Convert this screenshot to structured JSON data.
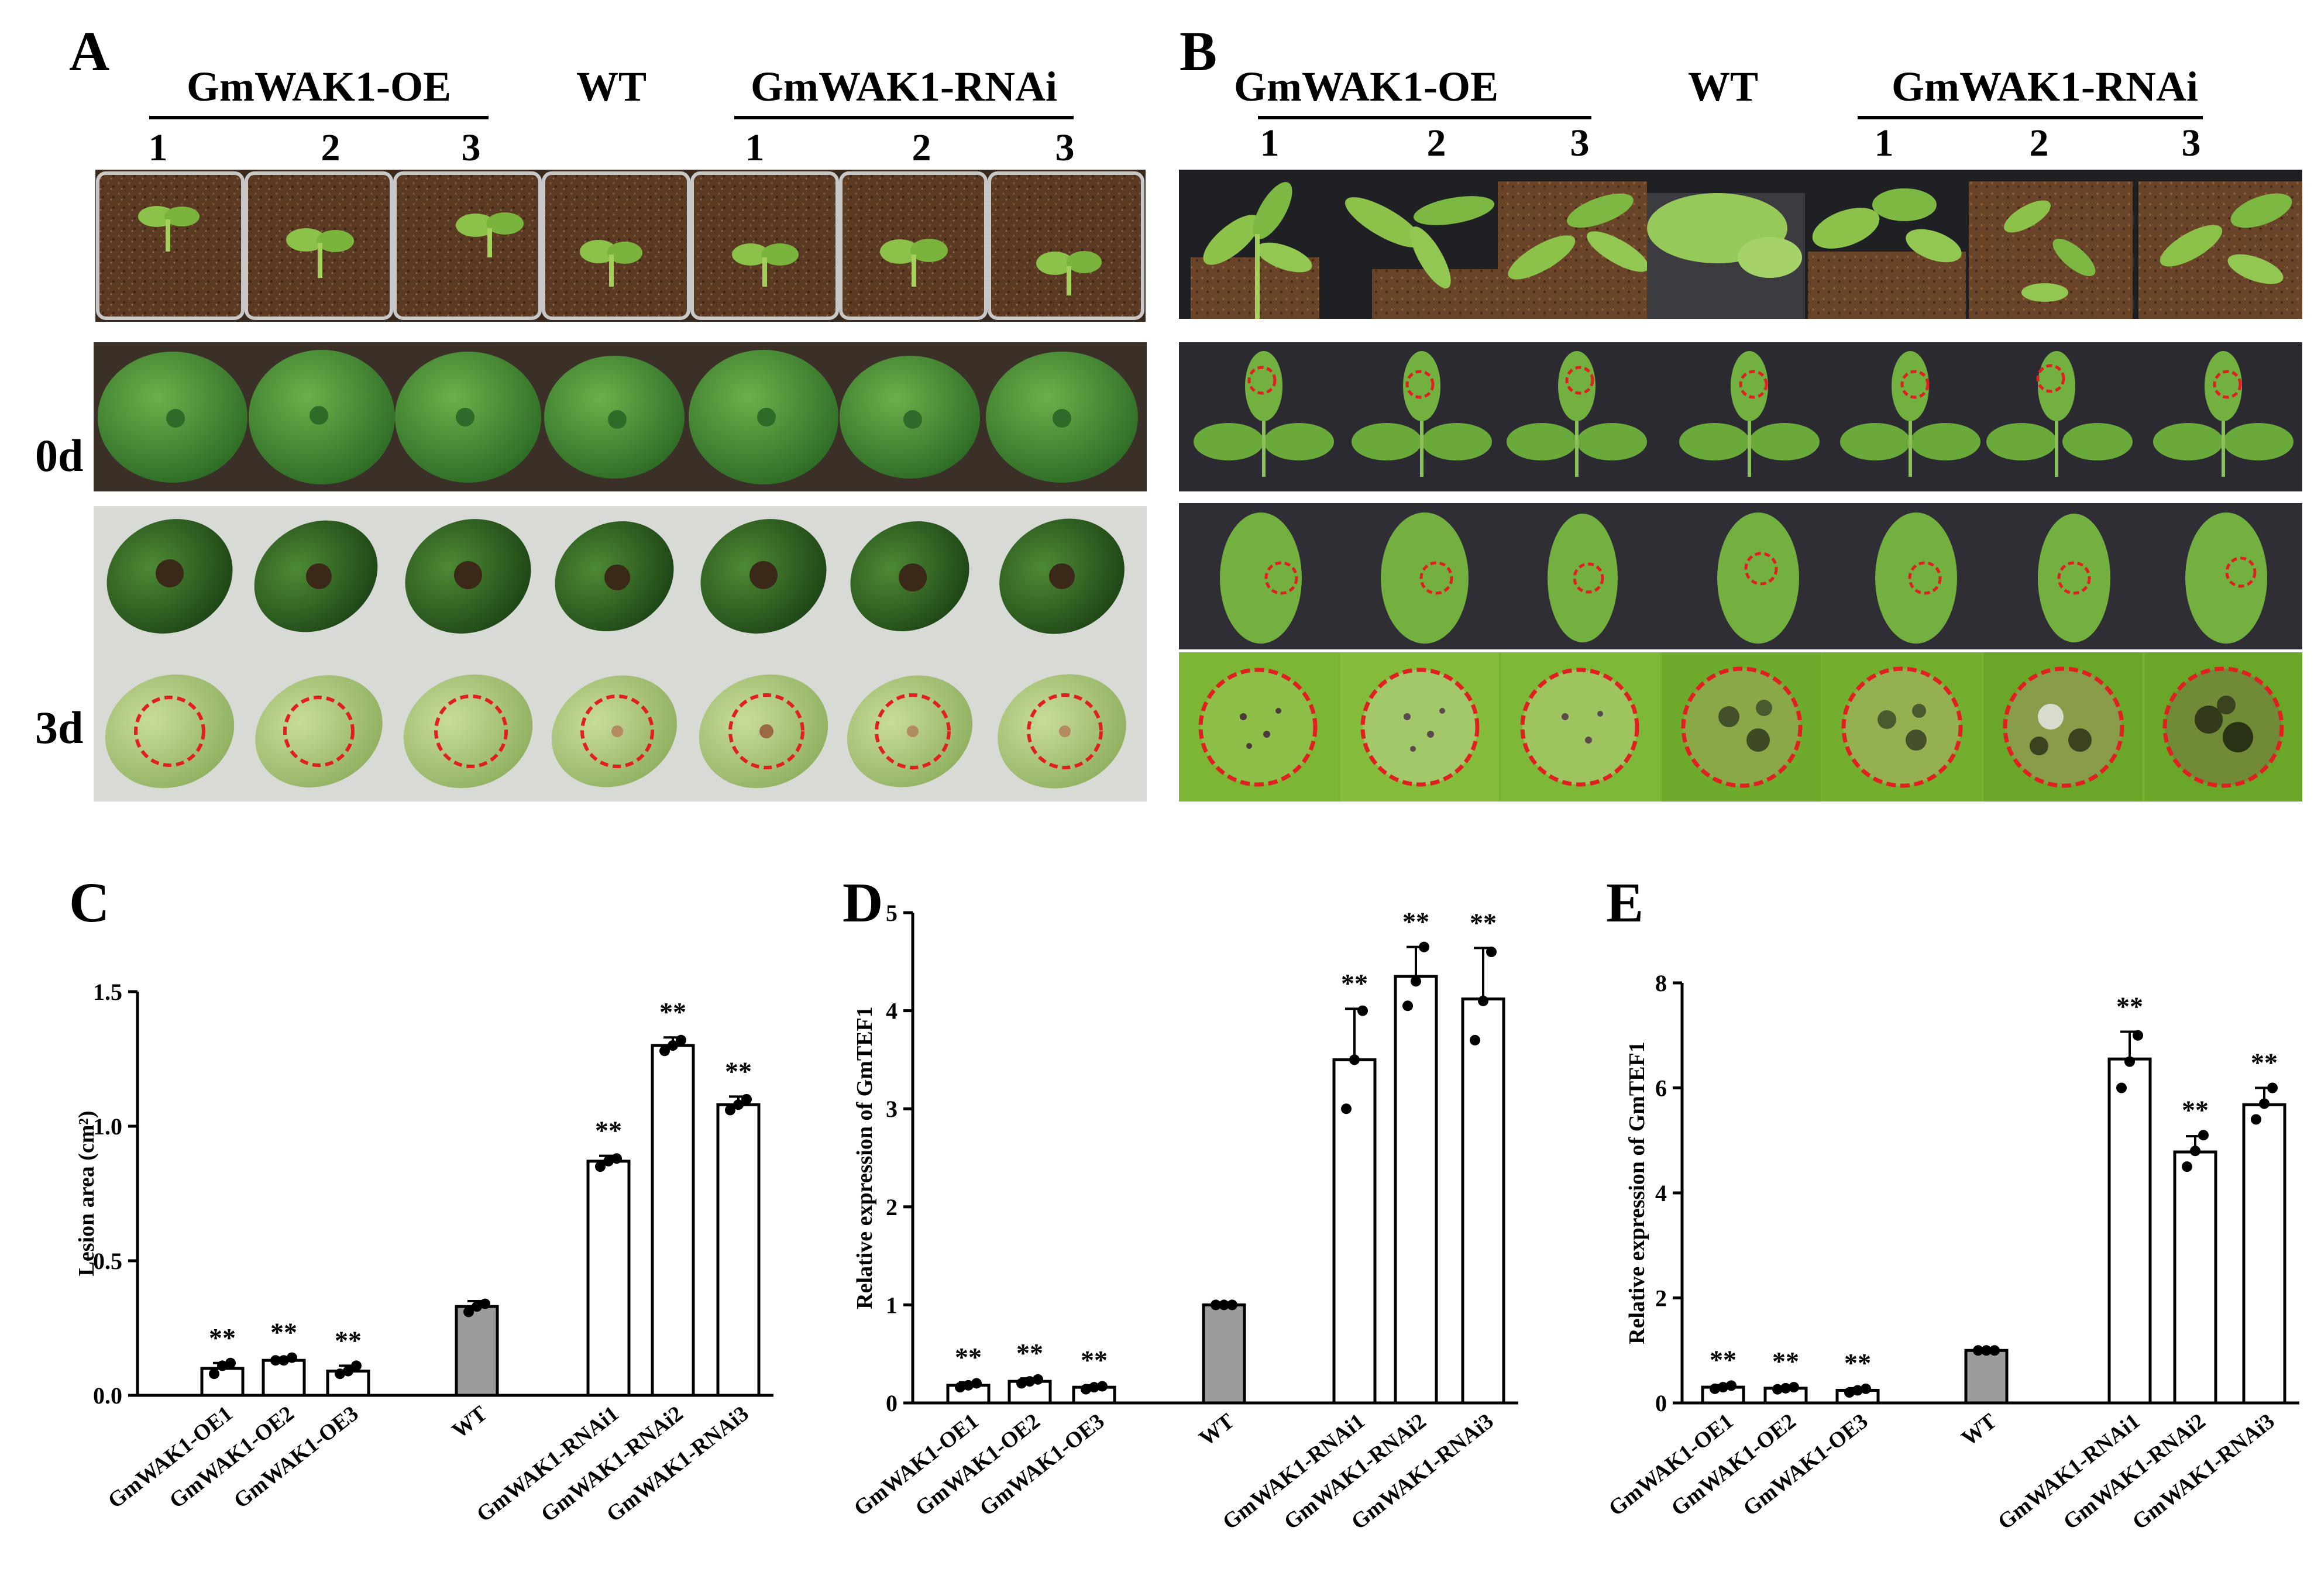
{
  "panel_letters": [
    "A",
    "B",
    "C",
    "D",
    "E"
  ],
  "panel_a": {
    "groups": [
      {
        "label": "GmWAK1-OE",
        "line": true
      },
      {
        "label": "WT",
        "line": false
      },
      {
        "label": "GmWAK1-RNAi",
        "line": true
      }
    ],
    "numbers": [
      "1",
      "2",
      "3",
      "1",
      "2",
      "3"
    ],
    "row_labels": [
      "0d",
      "3d"
    ]
  },
  "panel_b": {
    "groups": [
      {
        "label": "GmWAK1-OE",
        "line": true
      },
      {
        "label": "WT",
        "line": false
      },
      {
        "label": "GmWAK1-RNAi",
        "line": true
      }
    ],
    "numbers": [
      "1",
      "2",
      "3",
      "1",
      "2",
      "3"
    ]
  },
  "colors": {
    "soil": "#5a3a22",
    "leaf_green": "#6aaa3a",
    "pod_dark": "#2f5d22",
    "pod_light": "#a9c77a",
    "strip_dark": "#2a2a30",
    "lesion_circle": "#e02020",
    "wt_bar": "#9c9c9c",
    "bar_open": "#ffffff"
  },
  "chart_data": [
    {
      "panel": "C",
      "type": "bar",
      "ylabel": "Lesion area (cm²)",
      "ylim": [
        0,
        1.5
      ],
      "yticks": [
        "0.0",
        "0.5",
        "1.0",
        "1.5"
      ],
      "categories": [
        "GmWAK1-OE1",
        "GmWAK1-OE2",
        "GmWAK1-OE3",
        "WT",
        "GmWAK1-RNAi1",
        "GmWAK1-RNAi2",
        "GmWAK1-RNAi3"
      ],
      "values": [
        0.1,
        0.13,
        0.09,
        0.33,
        0.87,
        1.3,
        1.08
      ],
      "errors": [
        0.02,
        0.01,
        0.02,
        0.02,
        0.02,
        0.03,
        0.03
      ],
      "points": [
        [
          0.08,
          0.11,
          0.12
        ],
        [
          0.13,
          0.13,
          0.14
        ],
        [
          0.08,
          0.09,
          0.11
        ],
        [
          0.31,
          0.33,
          0.34
        ],
        [
          0.85,
          0.87,
          0.88
        ],
        [
          1.28,
          1.3,
          1.32
        ],
        [
          1.06,
          1.08,
          1.1
        ]
      ],
      "significance": [
        "**",
        "**",
        "**",
        "",
        "**",
        "**",
        "**"
      ]
    },
    {
      "panel": "D",
      "type": "bar",
      "ylabel": "Relative expression of GmTEF1",
      "ylim": [
        0,
        5
      ],
      "yticks": [
        "0",
        "1",
        "2",
        "3",
        "4",
        "5"
      ],
      "categories": [
        "GmWAK1-OE1",
        "GmWAK1-OE2",
        "GmWAK1-OE3",
        "WT",
        "GmWAK1-RNAi1",
        "GmWAK1-RNAi2",
        "GmWAK1-RNAi3"
      ],
      "values": [
        0.18,
        0.22,
        0.16,
        1.0,
        3.5,
        4.35,
        4.12
      ],
      "errors": [
        0.03,
        0.03,
        0.02,
        0.0,
        0.52,
        0.3,
        0.52
      ],
      "points": [
        [
          0.16,
          0.18,
          0.2
        ],
        [
          0.2,
          0.22,
          0.24
        ],
        [
          0.14,
          0.16,
          0.17
        ],
        [
          1.0,
          1.0,
          1.0
        ],
        [
          3.0,
          3.5,
          4.0
        ],
        [
          4.05,
          4.3,
          4.65
        ],
        [
          3.7,
          4.1,
          4.6
        ]
      ],
      "significance": [
        "**",
        "**",
        "**",
        "",
        "**",
        "**",
        "**"
      ]
    },
    {
      "panel": "E",
      "type": "bar",
      "ylabel": "Relative expression of GmTEF1",
      "ylim": [
        0,
        8
      ],
      "yticks": [
        "0",
        "2",
        "4",
        "6",
        "8"
      ],
      "categories": [
        "GmWAK1-OE1",
        "GmWAK1-OE2",
        "GmWAK1-OE3",
        "WT",
        "GmWAK1-RNAi1",
        "GmWAK1-RNAi2",
        "GmWAK1-RNAi3"
      ],
      "values": [
        0.3,
        0.28,
        0.24,
        1.0,
        6.55,
        4.78,
        5.68
      ],
      "errors": [
        0.04,
        0.03,
        0.04,
        0.0,
        0.52,
        0.3,
        0.32
      ],
      "points": [
        [
          0.27,
          0.3,
          0.33
        ],
        [
          0.26,
          0.28,
          0.3
        ],
        [
          0.2,
          0.24,
          0.27
        ],
        [
          1.0,
          1.0,
          1.0
        ],
        [
          6.0,
          6.5,
          7.0
        ],
        [
          4.5,
          4.8,
          5.1
        ],
        [
          5.4,
          5.7,
          6.0
        ]
      ],
      "significance": [
        "**",
        "**",
        "**",
        "",
        "**",
        "**",
        "**"
      ]
    }
  ]
}
